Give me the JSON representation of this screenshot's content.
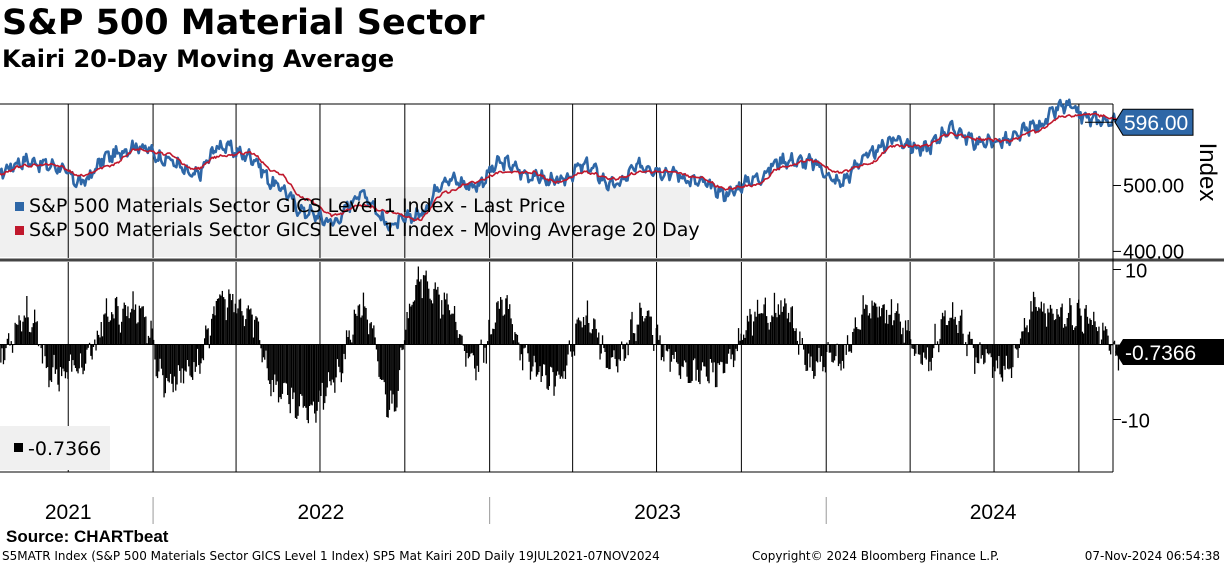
{
  "title": "S&P 500 Material Sector",
  "subtitle": "Kairi 20-Day Moving Average",
  "source": "Source: CHARTbeat",
  "footer": {
    "left": "S5MATR Index (S&P 500 Materials Sector GICS Level 1 Index) SP5 Mat Kairi 20D  Daily 19JUL2021-07NOV2024",
    "middle": "Copyright© 2024 Bloomberg Finance L.P.",
    "right": "07-Nov-2024 06:54:38"
  },
  "colors": {
    "last_price": "#2e67a7",
    "moving_average": "#c0182c",
    "kairi": "#000000",
    "price_tag": "#2e67a7",
    "kairi_tag": "#000000",
    "legend_bg": "#f0f0f0"
  },
  "chart_data": [
    {
      "type": "line",
      "panel": "upper",
      "ylabel": "Index",
      "ylim": [
        390,
        660
      ],
      "yticks": [
        400,
        500,
        600
      ],
      "ytick_labels": [
        "400.00",
        "500.00",
        ""
      ],
      "x_range": [
        "2021-07-19",
        "2024-11-07"
      ],
      "last_value_label": "596.00",
      "legend": [
        "S&P 500 Materials Sector GICS Level 1 Index - Last Price",
        "S&P 500 Materials Sector GICS Level 1 Index - Moving Average 20 Day"
      ],
      "x": [
        "2021-07",
        "2021-08",
        "2021-09",
        "2021-10",
        "2021-11",
        "2021-12",
        "2022-01",
        "2022-02",
        "2022-03",
        "2022-04",
        "2022-05",
        "2022-06",
        "2022-07",
        "2022-08",
        "2022-09",
        "2022-10",
        "2022-11",
        "2022-12",
        "2023-01",
        "2023-02",
        "2023-03",
        "2023-04",
        "2023-05",
        "2023-06",
        "2023-07",
        "2023-08",
        "2023-09",
        "2023-10",
        "2023-11",
        "2023-12",
        "2024-01",
        "2024-02",
        "2024-03",
        "2024-04",
        "2024-05",
        "2024-06",
        "2024-07",
        "2024-08",
        "2024-09",
        "2024-10",
        "2024-11"
      ],
      "series": [
        {
          "name": "S&P 500 Materials Sector GICS Level 1 Index - Last Price",
          "values": [
            520,
            537,
            530,
            505,
            545,
            560,
            540,
            515,
            560,
            545,
            500,
            460,
            445,
            488,
            440,
            455,
            510,
            500,
            535,
            515,
            505,
            530,
            500,
            530,
            520,
            505,
            488,
            510,
            538,
            535,
            505,
            545,
            570,
            555,
            585,
            565,
            568,
            590,
            620,
            600,
            596
          ]
        },
        {
          "name": "S&P 500 Materials Sector GICS Level 1 Index - Moving Average 20 Day",
          "values": [
            516,
            530,
            532,
            515,
            530,
            555,
            548,
            525,
            545,
            550,
            520,
            480,
            455,
            470,
            460,
            448,
            490,
            505,
            520,
            520,
            505,
            520,
            510,
            520,
            522,
            512,
            495,
            500,
            528,
            538,
            520,
            532,
            560,
            560,
            578,
            570,
            568,
            582,
            605,
            608,
            600
          ]
        }
      ]
    },
    {
      "type": "bar",
      "panel": "lower",
      "name": "-0.7366",
      "ylim": [
        -17,
        11
      ],
      "yticks": [
        10,
        -10
      ],
      "ytick_labels": [
        "10",
        "-10"
      ],
      "last_value_label": "-0.7366",
      "x": [
        "2021-07",
        "2021-08",
        "2021-09",
        "2021-10",
        "2021-11",
        "2021-12",
        "2022-01",
        "2022-02",
        "2022-03",
        "2022-04",
        "2022-05",
        "2022-06",
        "2022-07",
        "2022-08",
        "2022-09",
        "2022-10",
        "2022-11",
        "2022-12",
        "2023-01",
        "2023-02",
        "2023-03",
        "2023-04",
        "2023-05",
        "2023-06",
        "2023-07",
        "2023-08",
        "2023-09",
        "2023-10",
        "2023-11",
        "2023-12",
        "2024-01",
        "2024-02",
        "2024-03",
        "2024-04",
        "2024-05",
        "2024-06",
        "2024-07",
        "2024-08",
        "2024-09",
        "2024-10",
        "2024-11"
      ],
      "values": [
        -2,
        4,
        -4,
        -3,
        4,
        5,
        -5,
        -3,
        6,
        4,
        -6,
        -9,
        -5,
        5,
        -8,
        9,
        5,
        -3,
        5,
        -3,
        -5,
        4,
        -3,
        4,
        -2,
        -4,
        -3,
        4,
        5,
        -3,
        -2,
        5,
        4,
        -2,
        4,
        -2,
        -3,
        5,
        4,
        3,
        -1
      ]
    }
  ],
  "x_axis": {
    "year_labels": [
      "2021",
      "2022",
      "2023",
      "2024"
    ],
    "year_label_dates": [
      "2021-10-01",
      "2022-07-02",
      "2023-07-02",
      "2024-06-30"
    ],
    "year_separators": [
      "2022-01-01",
      "2023-01-01",
      "2024-01-01"
    ],
    "gridlines": [
      "2021-10-01",
      "2022-01-01",
      "2022-04-01",
      "2022-07-01",
      "2022-10-01",
      "2023-01-01",
      "2023-04-01",
      "2023-07-01",
      "2023-10-01",
      "2024-01-01",
      "2024-04-01",
      "2024-07-01",
      "2024-10-01"
    ]
  }
}
